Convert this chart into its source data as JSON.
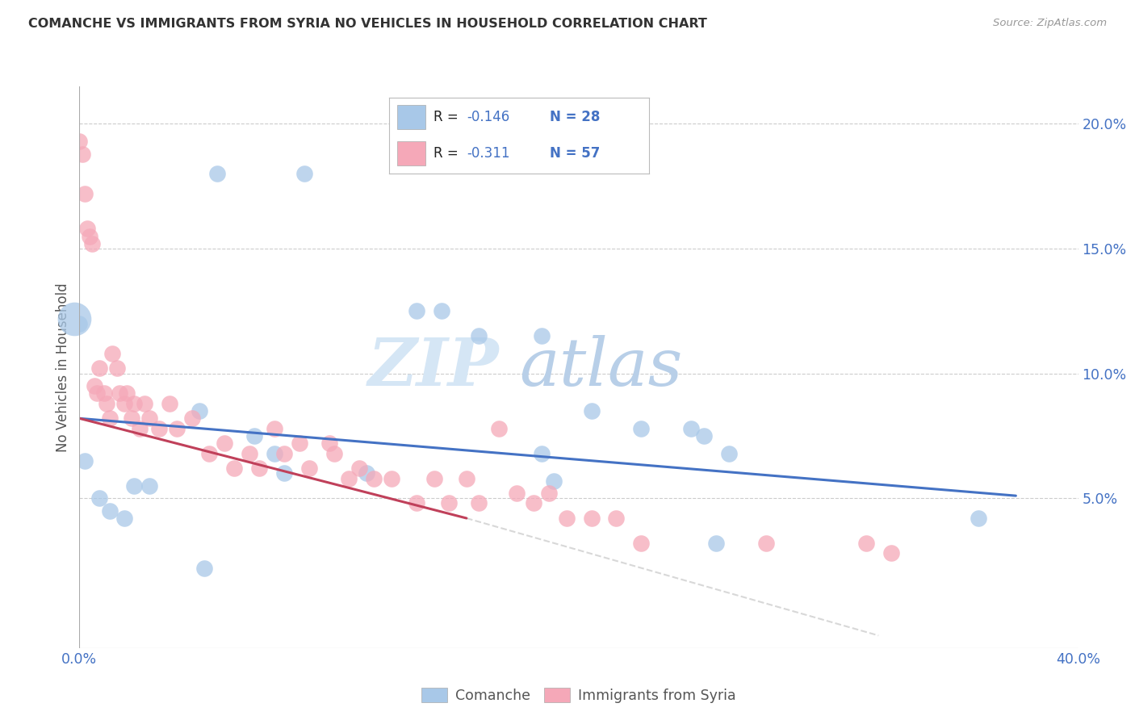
{
  "title": "COMANCHE VS IMMIGRANTS FROM SYRIA NO VEHICLES IN HOUSEHOLD CORRELATION CHART",
  "source": "Source: ZipAtlas.com",
  "ylabel": "No Vehicles in Household",
  "xlim": [
    0.0,
    0.4
  ],
  "ylim": [
    -0.01,
    0.215
  ],
  "yticks": [
    0.05,
    0.1,
    0.15,
    0.2
  ],
  "ytick_labels": [
    "5.0%",
    "10.0%",
    "15.0%",
    "20.0%"
  ],
  "xticks": [
    0.0,
    0.08,
    0.16,
    0.24,
    0.32,
    0.4
  ],
  "xtick_labels": [
    "0.0%",
    "",
    "",
    "",
    "",
    "40.0%"
  ],
  "legend_r1": "R = ",
  "legend_v1": "-0.146",
  "legend_n1": "N = 28",
  "legend_r2": "R = ",
  "legend_v2": "-0.311",
  "legend_n2": "N = 57",
  "watermark_zip": "ZIP",
  "watermark_atlas": "atlas",
  "blue_scatter": "#a8c8e8",
  "pink_scatter": "#f5a8b8",
  "line_blue": "#4472c4",
  "line_pink": "#c0405a",
  "line_dash_color": "#d8d8d8",
  "blue_label": "Comanche",
  "pink_label": "Immigrants from Syria",
  "blue_line_x": [
    0.0,
    0.375
  ],
  "blue_line_y": [
    0.082,
    0.051
  ],
  "pink_line_x": [
    0.0,
    0.155
  ],
  "pink_line_y": [
    0.082,
    0.042
  ],
  "dash_line_x": [
    0.155,
    0.32
  ],
  "dash_line_y": [
    0.042,
    -0.005
  ],
  "comanche_x": [
    0.0,
    0.002,
    0.055,
    0.09,
    0.135,
    0.16,
    0.185,
    0.145,
    0.048,
    0.07,
    0.078,
    0.082,
    0.115,
    0.008,
    0.012,
    0.018,
    0.022,
    0.028,
    0.205,
    0.25,
    0.245,
    0.26,
    0.36,
    0.185,
    0.19,
    0.225,
    0.255,
    0.05
  ],
  "comanche_y": [
    0.12,
    0.065,
    0.18,
    0.18,
    0.125,
    0.115,
    0.115,
    0.125,
    0.085,
    0.075,
    0.068,
    0.06,
    0.06,
    0.05,
    0.045,
    0.042,
    0.055,
    0.055,
    0.085,
    0.075,
    0.078,
    0.068,
    0.042,
    0.068,
    0.057,
    0.078,
    0.032,
    0.022
  ],
  "syria_x": [
    0.0,
    0.001,
    0.002,
    0.003,
    0.004,
    0.005,
    0.006,
    0.007,
    0.008,
    0.01,
    0.011,
    0.012,
    0.013,
    0.015,
    0.016,
    0.018,
    0.019,
    0.021,
    0.022,
    0.024,
    0.026,
    0.028,
    0.032,
    0.036,
    0.039,
    0.045,
    0.052,
    0.058,
    0.062,
    0.068,
    0.072,
    0.078,
    0.082,
    0.088,
    0.092,
    0.1,
    0.102,
    0.108,
    0.112,
    0.118,
    0.125,
    0.135,
    0.142,
    0.148,
    0.155,
    0.16,
    0.168,
    0.175,
    0.182,
    0.188,
    0.195,
    0.205,
    0.215,
    0.225,
    0.275,
    0.315,
    0.325
  ],
  "syria_y": [
    0.193,
    0.188,
    0.172,
    0.158,
    0.155,
    0.152,
    0.095,
    0.092,
    0.102,
    0.092,
    0.088,
    0.082,
    0.108,
    0.102,
    0.092,
    0.088,
    0.092,
    0.082,
    0.088,
    0.078,
    0.088,
    0.082,
    0.078,
    0.088,
    0.078,
    0.082,
    0.068,
    0.072,
    0.062,
    0.068,
    0.062,
    0.078,
    0.068,
    0.072,
    0.062,
    0.072,
    0.068,
    0.058,
    0.062,
    0.058,
    0.058,
    0.048,
    0.058,
    0.048,
    0.058,
    0.048,
    0.078,
    0.052,
    0.048,
    0.052,
    0.042,
    0.042,
    0.042,
    0.032,
    0.032,
    0.032,
    0.028
  ]
}
